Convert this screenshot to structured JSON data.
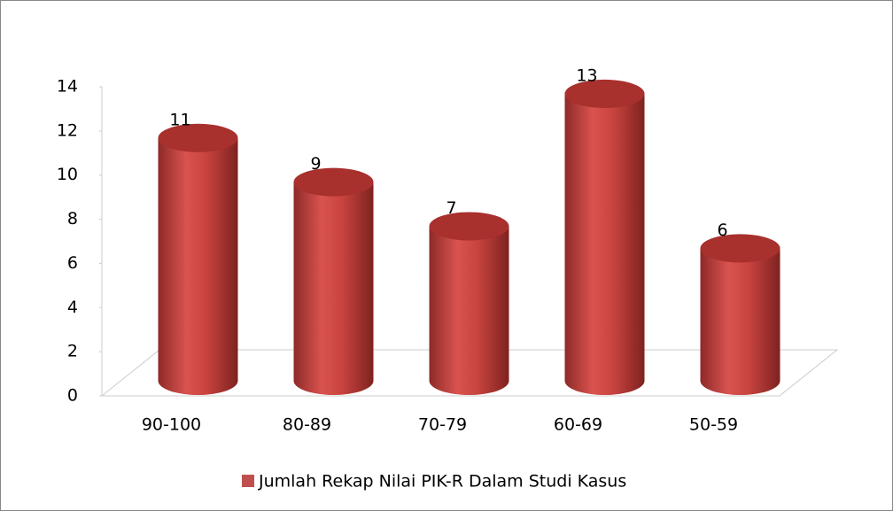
{
  "chart_data": {
    "type": "bar3d",
    "categories": [
      "90-100",
      "80-89",
      "70-79",
      "60-69",
      "50-59"
    ],
    "series": [
      {
        "name": "Jumlah Rekap Nilai PIK-R Dalam Studi Kasus",
        "color": "#c0504d",
        "values": [
          11,
          9,
          7,
          13,
          6
        ]
      }
    ],
    "ylim": [
      0,
      14
    ],
    "yticks": [
      0,
      2,
      4,
      6,
      8,
      10,
      12,
      14
    ],
    "legend": "bottom"
  }
}
